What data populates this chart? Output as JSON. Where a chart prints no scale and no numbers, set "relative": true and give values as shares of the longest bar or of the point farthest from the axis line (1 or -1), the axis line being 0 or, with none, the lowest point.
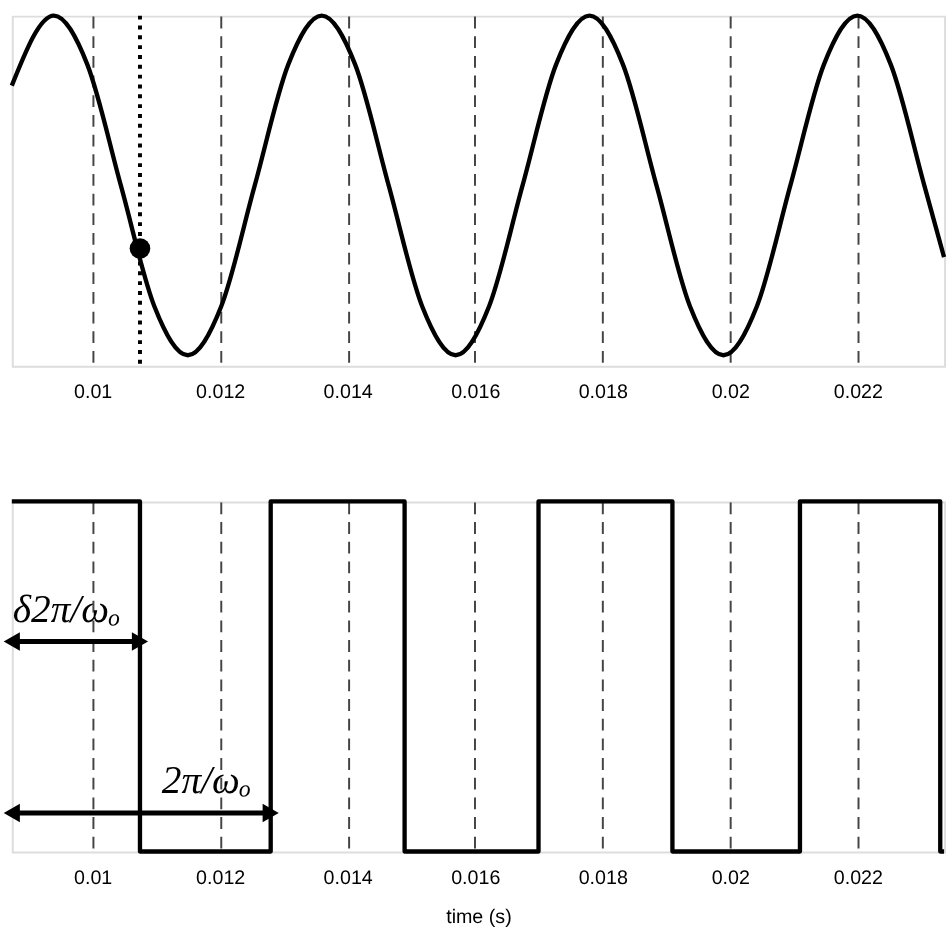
{
  "chart_data": [
    {
      "type": "line",
      "relative": true,
      "xlim": [
        0.00874,
        0.02336
      ],
      "xticks": [
        0.01,
        0.012,
        0.014,
        0.016,
        0.018,
        0.02,
        0.022
      ],
      "grid": "x",
      "series": [
        {
          "color": "#000000",
          "x": [
            0.00874,
            0.0094,
            0.009925,
            0.01045,
            0.010975,
            0.0115,
            0.012025,
            0.01255,
            0.013075,
            0.0136,
            0.014125,
            0.01465,
            0.015175,
            0.0157,
            0.016225,
            0.01675,
            0.017275,
            0.0178,
            0.018325,
            0.01885,
            0.019375,
            0.0199,
            0.020425,
            0.02095,
            0.021475,
            0.022,
            0.022525,
            0.02305,
            0.02336
          ],
          "values": [
            0.8,
            1,
            0.86,
            0.515,
            0.17,
            0.03,
            0.17,
            0.515,
            0.86,
            1,
            0.86,
            0.515,
            0.17,
            0.03,
            0.17,
            0.515,
            0.86,
            1,
            0.86,
            0.515,
            0.17,
            0.03,
            0.17,
            0.515,
            0.86,
            1,
            0.86,
            0.515,
            0.31
          ]
        },
        {
          "type": "scatter",
          "color": "#000000",
          "x": [
            0.01075
          ],
          "values": [
            0.335
          ]
        }
      ],
      "ref_lines": [
        {
          "axis": "x",
          "value": 0.01075,
          "line_style": "dotted",
          "color": "#000000"
        }
      ]
    },
    {
      "type": "step",
      "relative": true,
      "xlim": [
        0.00874,
        0.02336
      ],
      "xticks": [
        0.01,
        0.012,
        0.014,
        0.016,
        0.018,
        0.02,
        0.022
      ],
      "grid": "x",
      "xlabel": "time (s)",
      "series": [
        {
          "color": "#000000",
          "x": [
            0.00874,
            0.01075,
            0.0128,
            0.0149,
            0.017,
            0.0191,
            0.0211,
            0.0233,
            0.02336
          ],
          "values": [
            1,
            0,
            1,
            0,
            1,
            0,
            1,
            0,
            0
          ]
        }
      ],
      "annotations": [
        {
          "text": "δ2π/ωₒ",
          "x": 0.01075,
          "y": 0.6
        },
        {
          "text": "2π/ωₒ",
          "x": 0.0128,
          "y": 0.11
        }
      ]
    }
  ]
}
